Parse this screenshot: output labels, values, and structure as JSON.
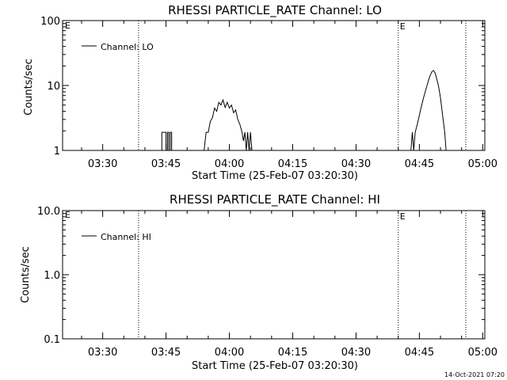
{
  "chart_data": [
    {
      "type": "line",
      "title": "RHESSI PARTICLE_RATE Channel: LO",
      "xlabel": "Start Time (25-Feb-07 03:20:30)",
      "ylabel": "Counts/sec",
      "yscale": "log",
      "ylim": [
        1,
        100
      ],
      "xlim": [
        "03:20:30",
        "05:00:30"
      ],
      "x_ticks": [
        "03:30",
        "03:45",
        "04:00",
        "04:15",
        "04:30",
        "04:45",
        "05:00"
      ],
      "y_ticks": [
        "1",
        "10",
        "100"
      ],
      "legend": {
        "label": "Channel: LO",
        "position": "top-left"
      },
      "vlines": [
        {
          "time": "03:38:30",
          "label": ""
        },
        {
          "time": "04:40:00",
          "label": "E"
        },
        {
          "time": "04:56:00",
          "label": ""
        }
      ],
      "left_marker": "E",
      "series": [
        {
          "name": "Channel: LO",
          "points": [
            [
              "03:44:00",
              1
            ],
            [
              "03:44:00",
              1.9
            ],
            [
              "03:45:00",
              1.9
            ],
            [
              "03:45:00",
              1
            ],
            [
              "03:45:20",
              1
            ],
            [
              "03:45:20",
              1.9
            ],
            [
              "03:45:40",
              1.9
            ],
            [
              "03:45:40",
              1
            ],
            [
              "03:46:00",
              1
            ],
            [
              "03:46:00",
              1.9
            ],
            [
              "03:46:20",
              1.9
            ],
            [
              "03:46:20",
              1
            ],
            [
              "03:54:00",
              1
            ],
            [
              "03:54:30",
              1.9
            ],
            [
              "03:55:00",
              1.9
            ],
            [
              "03:55:30",
              2.8
            ],
            [
              "03:56:00",
              3.2
            ],
            [
              "03:56:30",
              4.5
            ],
            [
              "03:57:00",
              4.0
            ],
            [
              "03:57:30",
              5.5
            ],
            [
              "03:58:00",
              5.0
            ],
            [
              "03:58:30",
              6.0
            ],
            [
              "03:59:00",
              4.6
            ],
            [
              "03:59:30",
              5.5
            ],
            [
              "04:00:00",
              4.5
            ],
            [
              "04:00:30",
              5.0
            ],
            [
              "04:01:00",
              3.8
            ],
            [
              "04:01:30",
              4.2
            ],
            [
              "04:02:00",
              3.0
            ],
            [
              "04:02:30",
              2.5
            ],
            [
              "04:03:00",
              1.9
            ],
            [
              "04:03:20",
              1.4
            ],
            [
              "04:03:40",
              1.9
            ],
            [
              "04:04:00",
              1
            ],
            [
              "04:04:20",
              1.9
            ],
            [
              "04:04:40",
              1
            ],
            [
              "04:05:00",
              1.9
            ],
            [
              "04:05:20",
              1
            ],
            [
              "04:43:00",
              1
            ],
            [
              "04:43:20",
              1.9
            ],
            [
              "04:43:40",
              1
            ],
            [
              "04:44:00",
              1.9
            ],
            [
              "04:44:30",
              2.5
            ],
            [
              "04:45:00",
              3.5
            ],
            [
              "04:45:30",
              4.8
            ],
            [
              "04:46:00",
              6.5
            ],
            [
              "04:46:30",
              8.5
            ],
            [
              "04:47:00",
              11
            ],
            [
              "04:47:30",
              14
            ],
            [
              "04:48:00",
              16.5
            ],
            [
              "04:48:20",
              17
            ],
            [
              "04:48:40",
              16
            ],
            [
              "04:49:00",
              13.5
            ],
            [
              "04:49:30",
              10
            ],
            [
              "04:50:00",
              6.5
            ],
            [
              "04:50:30",
              3.5
            ],
            [
              "04:51:00",
              1.9
            ],
            [
              "04:51:20",
              1
            ]
          ]
        }
      ]
    },
    {
      "type": "line",
      "title": "RHESSI PARTICLE_RATE Channel: HI",
      "xlabel": "Start Time (25-Feb-07 03:20:30)",
      "ylabel": "Counts/sec",
      "yscale": "log",
      "ylim": [
        0.1,
        10
      ],
      "xlim": [
        "03:20:30",
        "05:00:30"
      ],
      "x_ticks": [
        "03:30",
        "03:45",
        "04:00",
        "04:15",
        "04:30",
        "04:45",
        "05:00"
      ],
      "y_ticks": [
        "0.1",
        "1.0",
        "10.0"
      ],
      "legend": {
        "label": "Channel: HI",
        "position": "top-left"
      },
      "vlines": [
        {
          "time": "03:38:30",
          "label": ""
        },
        {
          "time": "04:40:00",
          "label": "E"
        },
        {
          "time": "04:56:00",
          "label": ""
        }
      ],
      "left_marker": "E",
      "series": [
        {
          "name": "Channel: HI",
          "points": []
        }
      ]
    }
  ],
  "footer": {
    "timestamp": "14-Oct-2021 07:20"
  }
}
